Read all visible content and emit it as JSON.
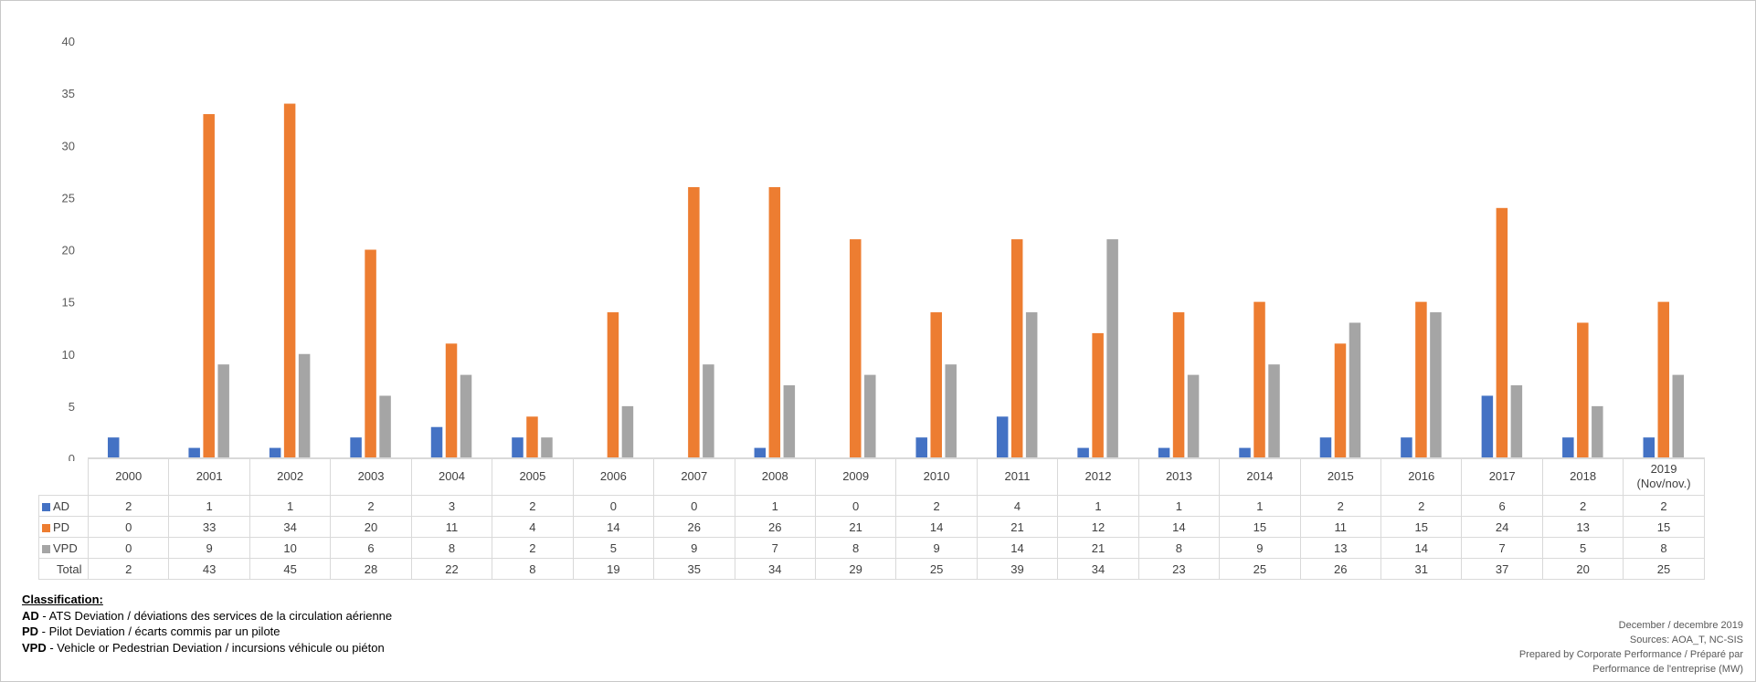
{
  "chart_data": {
    "type": "bar",
    "title": "",
    "ylim": [
      0,
      40
    ],
    "yticks": [
      0,
      5,
      10,
      15,
      20,
      25,
      30,
      35,
      40
    ],
    "grid": false,
    "categories": [
      "2000",
      "2001",
      "2002",
      "2003",
      "2004",
      "2005",
      "2006",
      "2007",
      "2008",
      "2009",
      "2010",
      "2011",
      "2012",
      "2013",
      "2014",
      "2015",
      "2016",
      "2017",
      "2018",
      "2019 (Nov/nov.)"
    ],
    "category_lines": [
      [
        "2000"
      ],
      [
        "2001"
      ],
      [
        "2002"
      ],
      [
        "2003"
      ],
      [
        "2004"
      ],
      [
        "2005"
      ],
      [
        "2006"
      ],
      [
        "2007"
      ],
      [
        "2008"
      ],
      [
        "2009"
      ],
      [
        "2010"
      ],
      [
        "2011"
      ],
      [
        "2012"
      ],
      [
        "2013"
      ],
      [
        "2014"
      ],
      [
        "2015"
      ],
      [
        "2016"
      ],
      [
        "2017"
      ],
      [
        "2018"
      ],
      [
        "2019",
        "(Nov/nov.)"
      ]
    ],
    "series": [
      {
        "name": "AD",
        "color": "#4472c4",
        "values": [
          2,
          1,
          1,
          2,
          3,
          2,
          0,
          0,
          1,
          0,
          2,
          4,
          1,
          1,
          1,
          2,
          2,
          6,
          2,
          2
        ]
      },
      {
        "name": "PD",
        "color": "#ed7d31",
        "values": [
          0,
          33,
          34,
          20,
          11,
          4,
          14,
          26,
          26,
          21,
          14,
          21,
          12,
          14,
          15,
          11,
          15,
          24,
          13,
          15
        ]
      },
      {
        "name": "VPD",
        "color": "#a5a5a5",
        "values": [
          0,
          9,
          10,
          6,
          8,
          2,
          5,
          9,
          7,
          8,
          9,
          14,
          21,
          8,
          9,
          13,
          14,
          7,
          5,
          8
        ]
      }
    ],
    "total_label": "Total",
    "totals": [
      2,
      43,
      45,
      28,
      22,
      8,
      19,
      35,
      34,
      29,
      25,
      39,
      34,
      23,
      25,
      26,
      31,
      37,
      20,
      25
    ]
  },
  "classification": {
    "title": "Classification:",
    "items": [
      {
        "code": "AD",
        "sep": " -  ",
        "text": "ATS Deviation / déviations des services de la circulation aérienne"
      },
      {
        "code": "PD",
        "sep": " -  ",
        "text": "Pilot Deviation / écarts commis par un pilote"
      },
      {
        "code": "VPD",
        "sep": " - ",
        "text": "Vehicle or Pedestrian Deviation / incursions véhicule ou piéton"
      }
    ]
  },
  "credits": {
    "date": "December  / decembre  2019",
    "sources": "Sources: AOA_T,  NC-SIS",
    "prepared_1": "Prepared by Corporate Performance / Préparé par",
    "prepared_2": "Performance de  l'entreprise (MW)"
  }
}
